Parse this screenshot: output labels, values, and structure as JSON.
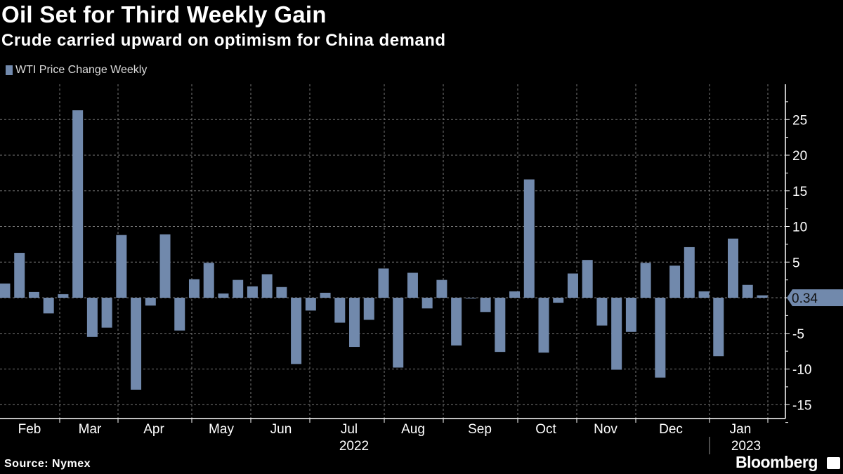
{
  "header": {
    "title": "Oil Set for Third Weekly Gain",
    "subtitle": "Crude carried upward on optimism for China demand"
  },
  "footer": {
    "source": "Source: Nymex",
    "brand": "Bloomberg"
  },
  "colors": {
    "bar": "#7189ac",
    "grid": "#777777",
    "axis": "#ffffff",
    "background": "#000000"
  },
  "chart_data": {
    "type": "bar",
    "title": "Oil Set for Third Weekly Gain",
    "legend": [
      {
        "label": "WTI Price Change Weekly",
        "color": "#7189ac"
      }
    ],
    "legend_position": "top-left",
    "ylim": [
      -17,
      30
    ],
    "y_ticks": [
      25,
      20,
      15,
      10,
      5,
      0,
      -5,
      -10,
      -15
    ],
    "y_tick_labels": [
      "25",
      "20",
      "15",
      "10",
      "5",
      "",
      "-5",
      "-10",
      "-15"
    ],
    "grid": true,
    "x_month_labels": [
      "Feb",
      "Mar",
      "Apr",
      "May",
      "Jun",
      "Jul",
      "Aug",
      "Sep",
      "Oct",
      "Nov",
      "Dec",
      "Jan"
    ],
    "x_year_labels": [
      "2022",
      "2023"
    ],
    "last_value_label": "0.34",
    "values": [
      2.0,
      6.3,
      0.8,
      -2.2,
      0.5,
      26.3,
      -5.5,
      -4.2,
      8.8,
      -12.9,
      -1.1,
      8.9,
      -4.6,
      2.6,
      4.9,
      0.6,
      2.5,
      1.6,
      3.3,
      1.5,
      -9.3,
      -1.8,
      0.7,
      -3.5,
      -6.9,
      -3.1,
      4.1,
      -9.8,
      3.5,
      -1.5,
      2.5,
      -6.7,
      -0.1,
      -2.0,
      -7.6,
      0.9,
      16.6,
      -7.7,
      -0.7,
      3.4,
      5.3,
      -3.9,
      -10.1,
      -4.8,
      4.9,
      -11.2,
      4.5,
      7.1,
      0.9,
      -8.2,
      8.3,
      1.8,
      0.34
    ]
  }
}
